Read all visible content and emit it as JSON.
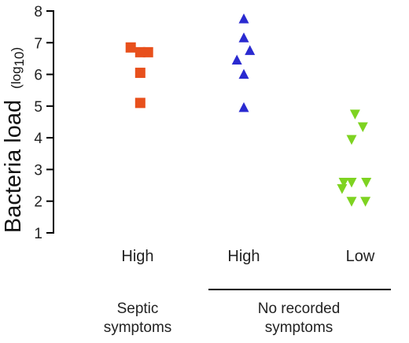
{
  "chart_data": {
    "type": "scatter",
    "ylabel": "Bacteria load",
    "ylabel_unit": "(log",
    "ylabel_unit_sub": "10",
    "ylabel_unit_close": ")",
    "ylim": [
      1,
      8
    ],
    "yticks": [
      "1",
      "2",
      "3",
      "4",
      "5",
      "6",
      "7",
      "8"
    ],
    "categories": [
      "High",
      "High",
      "Low"
    ],
    "groups": [
      {
        "label_lines": [
          "Septic",
          "symptoms"
        ],
        "categories": [
          0
        ]
      },
      {
        "label_lines": [
          "No recorded",
          "symptoms"
        ],
        "categories": [
          1,
          2
        ]
      }
    ],
    "series": [
      {
        "category": 0,
        "marker": "square",
        "color": "#e8501c",
        "points": [
          {
            "offset": -0.4,
            "y": 6.85
          },
          {
            "offset": 0.15,
            "y": 6.7
          },
          {
            "offset": 0.6,
            "y": 6.7
          },
          {
            "offset": 0.15,
            "y": 6.05
          },
          {
            "offset": 0.15,
            "y": 5.1
          }
        ]
      },
      {
        "category": 1,
        "marker": "triangle-up",
        "color": "#2a2ad0",
        "points": [
          {
            "offset": 0.0,
            "y": 7.75
          },
          {
            "offset": 0.0,
            "y": 7.15
          },
          {
            "offset": 0.35,
            "y": 6.75
          },
          {
            "offset": -0.4,
            "y": 6.45
          },
          {
            "offset": 0.0,
            "y": 6.0
          },
          {
            "offset": 0.0,
            "y": 4.95
          }
        ]
      },
      {
        "category": 2,
        "marker": "triangle-down",
        "color": "#7ed321",
        "points": [
          {
            "offset": -0.3,
            "y": 4.75
          },
          {
            "offset": 0.15,
            "y": 4.35
          },
          {
            "offset": -0.5,
            "y": 3.95
          },
          {
            "offset": -0.95,
            "y": 2.6
          },
          {
            "offset": -0.5,
            "y": 2.6
          },
          {
            "offset": 0.35,
            "y": 2.6
          },
          {
            "offset": -1.05,
            "y": 2.4
          },
          {
            "offset": -0.5,
            "y": 2.0
          },
          {
            "offset": 0.3,
            "y": 2.0
          }
        ]
      }
    ]
  }
}
